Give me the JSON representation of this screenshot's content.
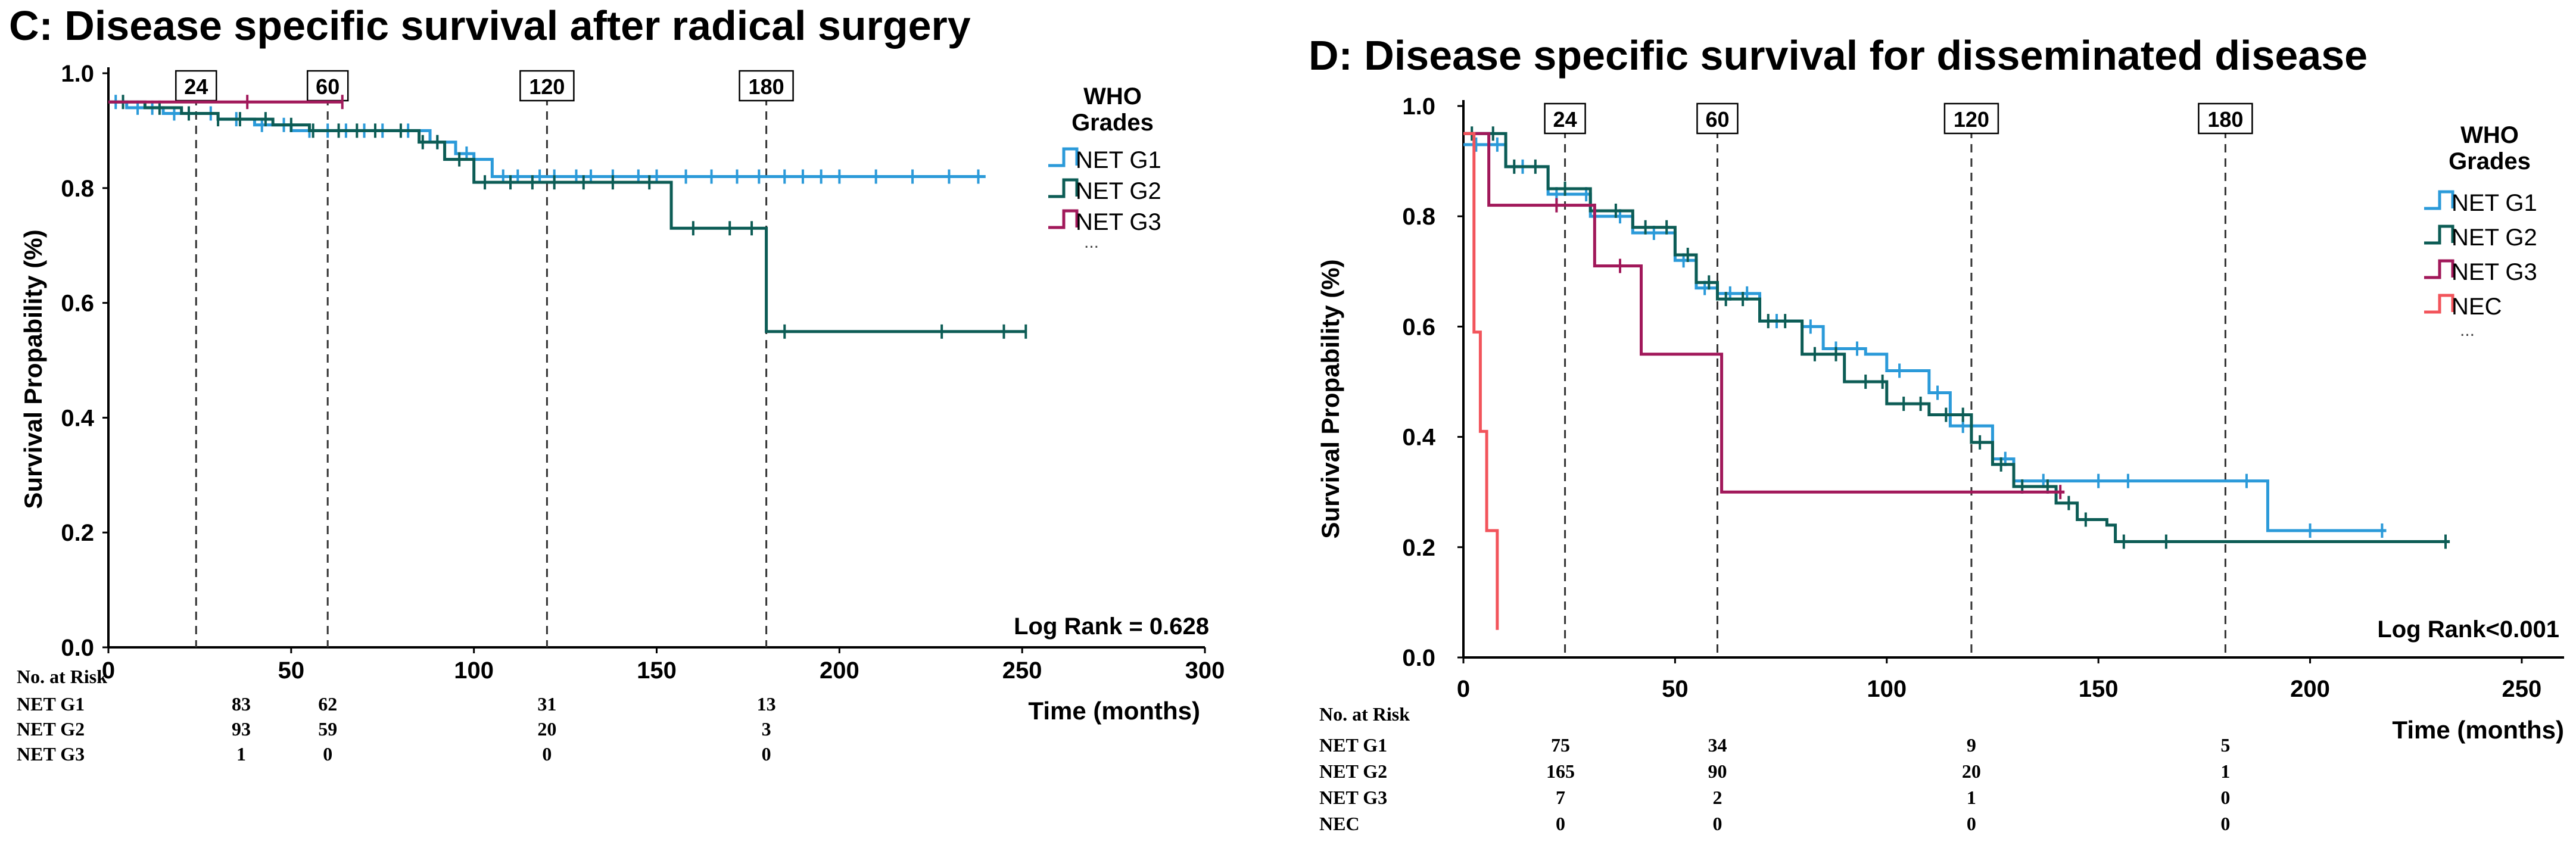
{
  "colors": {
    "NET G1": "#2b9ad9",
    "NET G2": "#0c5c55",
    "NET G3": "#a1185a",
    "NEC": "#f2545b"
  },
  "chart_data": [
    {
      "type": "line",
      "panel": "C",
      "title": "C: Disease specific survival after radical surgery",
      "xlabel": "Time (months)",
      "ylabel": "Survival Propability (%)",
      "xlim": [
        0,
        300
      ],
      "ylim": [
        0,
        1
      ],
      "x_ticks": [
        0,
        50,
        100,
        150,
        200,
        250,
        300
      ],
      "y_ticks": [
        0.0,
        0.2,
        0.4,
        0.6,
        0.8,
        1.0
      ],
      "y_tick_labels": [
        "0.0",
        "0.2",
        "0.4",
        "0.6",
        "0.8",
        "1.0"
      ],
      "landmarks": [
        24,
        60,
        120,
        180
      ],
      "landmark_labels": [
        "24",
        "60",
        "120",
        "180"
      ],
      "legend_title": "WHO Grades",
      "legend_entries": [
        "NET G1",
        "NET G2",
        "NET G3"
      ],
      "legend_more": "...",
      "legend_position": "top-right",
      "stat": "Log Rank = 0.628",
      "series": [
        {
          "name": "NET G1",
          "points": [
            [
              0,
              0.95
            ],
            [
              5,
              0.94
            ],
            [
              10,
              0.94
            ],
            [
              15,
              0.93
            ],
            [
              25,
              0.93
            ],
            [
              30,
              0.92
            ],
            [
              40,
              0.91
            ],
            [
              50,
              0.9
            ],
            [
              80,
              0.9
            ],
            [
              88,
              0.88
            ],
            [
              95,
              0.86
            ],
            [
              100,
              0.85
            ],
            [
              105,
              0.82
            ],
            [
              120,
              0.82
            ],
            [
              240,
              0.82
            ]
          ],
          "censors": [
            2,
            8,
            12,
            18,
            28,
            35,
            42,
            48,
            55,
            60,
            65,
            70,
            75,
            82,
            90,
            98,
            108,
            112,
            118,
            122,
            128,
            132,
            138,
            145,
            150,
            158,
            165,
            172,
            178,
            185,
            190,
            195,
            200,
            210,
            220,
            230,
            238
          ]
        },
        {
          "name": "NET G2",
          "points": [
            [
              0,
              0.95
            ],
            [
              10,
              0.94
            ],
            [
              20,
              0.93
            ],
            [
              30,
              0.92
            ],
            [
              45,
              0.91
            ],
            [
              55,
              0.9
            ],
            [
              75,
              0.9
            ],
            [
              85,
              0.88
            ],
            [
              92,
              0.85
            ],
            [
              100,
              0.81
            ],
            [
              153,
              0.81
            ],
            [
              154,
              0.73
            ],
            [
              179,
              0.73
            ],
            [
              180,
              0.55
            ],
            [
              251,
              0.55
            ]
          ],
          "censors": [
            4,
            14,
            22,
            30,
            36,
            43,
            50,
            56,
            63,
            68,
            73,
            80,
            86,
            90,
            96,
            103,
            110,
            116,
            122,
            130,
            138,
            148,
            160,
            170,
            176,
            185,
            228,
            245,
            251
          ]
        },
        {
          "name": "NET G3",
          "points": [
            [
              0,
              0.95
            ],
            [
              64,
              0.95
            ]
          ],
          "censors": [
            38,
            64
          ]
        }
      ],
      "risk_table": {
        "header": "No. at Risk",
        "rows": [
          {
            "name": "NET G1",
            "values": [
              "83",
              "62",
              "31",
              "13"
            ]
          },
          {
            "name": "NET G2",
            "values": [
              "93",
              "59",
              "20",
              "3"
            ]
          },
          {
            "name": "NET G3",
            "values": [
              "1",
              "0",
              "0",
              "0"
            ]
          }
        ]
      }
    },
    {
      "type": "line",
      "panel": "D",
      "title": "D: Disease specific survival for disseminated disease",
      "xlabel": "Time (months)",
      "ylabel": "Survival Propability (%)",
      "xlim": [
        0,
        260
      ],
      "ylim": [
        0,
        1
      ],
      "x_ticks": [
        0,
        50,
        100,
        150,
        200,
        250
      ],
      "y_ticks": [
        0.0,
        0.2,
        0.4,
        0.6,
        0.8,
        1.0
      ],
      "y_tick_labels": [
        "0.0",
        "0.2",
        "0.4",
        "0.6",
        "0.8",
        "1.0"
      ],
      "landmarks": [
        24,
        60,
        120,
        180
      ],
      "landmark_labels": [
        "24",
        "60",
        "120",
        "180"
      ],
      "legend_title": "WHO Grades",
      "legend_entries": [
        "NET G1",
        "NET G2",
        "NET G3",
        "NEC"
      ],
      "legend_more": "...",
      "legend_position": "top-right",
      "stat": "Log Rank<0.001",
      "series": [
        {
          "name": "NET G1",
          "points": [
            [
              0,
              0.93
            ],
            [
              10,
              0.89
            ],
            [
              20,
              0.84
            ],
            [
              30,
              0.8
            ],
            [
              40,
              0.77
            ],
            [
              50,
              0.72
            ],
            [
              55,
              0.67
            ],
            [
              60,
              0.66
            ],
            [
              70,
              0.61
            ],
            [
              80,
              0.6
            ],
            [
              85,
              0.56
            ],
            [
              95,
              0.55
            ],
            [
              100,
              0.52
            ],
            [
              110,
              0.48
            ],
            [
              115,
              0.42
            ],
            [
              125,
              0.36
            ],
            [
              130,
              0.32
            ],
            [
              188,
              0.32
            ],
            [
              190,
              0.23
            ],
            [
              218,
              0.23
            ]
          ],
          "censors": [
            3,
            8,
            14,
            22,
            29,
            37,
            45,
            52,
            57,
            63,
            67,
            74,
            82,
            88,
            93,
            103,
            112,
            118,
            128,
            137,
            150,
            157,
            185,
            200,
            217
          ]
        },
        {
          "name": "NET G2",
          "points": [
            [
              0,
              0.95
            ],
            [
              10,
              0.89
            ],
            [
              20,
              0.85
            ],
            [
              30,
              0.81
            ],
            [
              40,
              0.78
            ],
            [
              50,
              0.73
            ],
            [
              55,
              0.68
            ],
            [
              60,
              0.65
            ],
            [
              70,
              0.61
            ],
            [
              80,
              0.55
            ],
            [
              90,
              0.5
            ],
            [
              100,
              0.46
            ],
            [
              110,
              0.44
            ],
            [
              120,
              0.39
            ],
            [
              125,
              0.35
            ],
            [
              130,
              0.31
            ],
            [
              140,
              0.28
            ],
            [
              145,
              0.25
            ],
            [
              152,
              0.24
            ],
            [
              154,
              0.21
            ],
            [
              233,
              0.21
            ]
          ],
          "censors": [
            2,
            7,
            12,
            17,
            24,
            31,
            36,
            43,
            48,
            53,
            58,
            62,
            66,
            72,
            76,
            83,
            88,
            95,
            99,
            104,
            108,
            114,
            118,
            122,
            127,
            132,
            138,
            143,
            147,
            156,
            166,
            232
          ]
        },
        {
          "name": "NET G3",
          "points": [
            [
              0,
              0.95
            ],
            [
              5,
              0.95
            ],
            [
              6,
              0.82
            ],
            [
              30,
              0.82
            ],
            [
              31,
              0.71
            ],
            [
              41,
              0.71
            ],
            [
              42,
              0.55
            ],
            [
              60,
              0.55
            ],
            [
              61,
              0.3
            ],
            [
              142,
              0.3
            ]
          ],
          "censors": [
            22,
            37,
            141
          ]
        },
        {
          "name": "NEC",
          "points": [
            [
              0,
              0.95
            ],
            [
              2,
              0.95
            ],
            [
              2.5,
              0.59
            ],
            [
              3.5,
              0.59
            ],
            [
              4,
              0.41
            ],
            [
              5,
              0.41
            ],
            [
              5.5,
              0.23
            ],
            [
              8,
              0.23
            ],
            [
              8,
              0.05
            ]
          ],
          "censors": []
        }
      ],
      "risk_table": {
        "header": "No. at Risk",
        "rows": [
          {
            "name": "NET G1",
            "values": [
              "75",
              "34",
              "9",
              "5"
            ]
          },
          {
            "name": "NET G2",
            "values": [
              "165",
              "90",
              "20",
              "1"
            ]
          },
          {
            "name": "NET G3",
            "values": [
              "7",
              "2",
              "1",
              "0"
            ]
          },
          {
            "name": "NEC",
            "values": [
              "0",
              "0",
              "0",
              "0"
            ]
          }
        ]
      }
    }
  ]
}
